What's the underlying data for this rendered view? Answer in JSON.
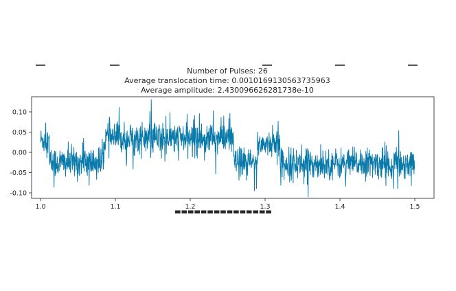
{
  "chart_data": {
    "type": "line",
    "title_lines": [
      "Number of Pulses: 26",
      "Average translocation time: 0.0010169130563735963",
      "Average amplitude: 2.430096626281738e-10"
    ],
    "xlabel": "",
    "ylabel": "",
    "xlim": [
      1.0,
      1.5
    ],
    "ylim": [
      -0.11,
      0.13
    ],
    "x_ticks": [
      1.0,
      1.1,
      1.2,
      1.3,
      1.4,
      1.5
    ],
    "x_tick_labels": [
      "1.0",
      "1.1",
      "1.2",
      "1.3",
      "1.4",
      "1.5"
    ],
    "y_ticks": [
      0.1,
      0.05,
      0.0,
      -0.05,
      -0.1
    ],
    "y_tick_labels": [
      "0.10",
      "0.05",
      "0.00",
      "-0.05",
      "-0.10"
    ],
    "grid": false,
    "series": [
      {
        "color": "#0a7aab",
        "segments": [
          {
            "x_start": 1.0,
            "x_end": 1.012,
            "mean": 0.03,
            "noise": 0.03
          },
          {
            "x_start": 1.012,
            "x_end": 1.085,
            "mean": -0.025,
            "noise": 0.035
          },
          {
            "x_start": 1.085,
            "x_end": 1.258,
            "mean": 0.035,
            "noise": 0.035
          },
          {
            "x_start": 1.258,
            "x_end": 1.29,
            "mean": -0.025,
            "noise": 0.03
          },
          {
            "x_start": 1.29,
            "x_end": 1.32,
            "mean": 0.022,
            "noise": 0.03
          },
          {
            "x_start": 1.32,
            "x_end": 1.5,
            "mean": -0.028,
            "noise": 0.033
          }
        ]
      }
    ]
  }
}
